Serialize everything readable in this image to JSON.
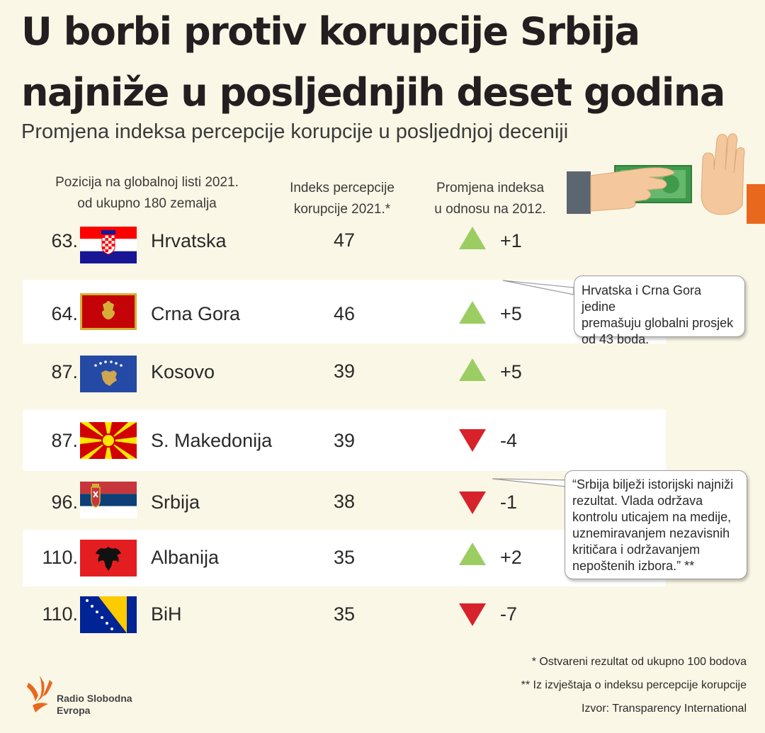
{
  "title_line1": "U borbi protiv korupcije Srbija",
  "title_line2": "najniže u posljednjih deset godina",
  "subtitle": "Promjena indeksa percepcije korupcije u posljednjoj deceniji",
  "headers": {
    "rank_line1": "Pozicija na globalnoj listi 2021.",
    "rank_line2": "od ukupno 180 zemalja",
    "score_line1": "Indeks percepcije",
    "score_line2": "korupcije 2021.*",
    "change_line1": "Promjena indeksa",
    "change_line2": "u odnosu na 2012."
  },
  "chart_data": {
    "type": "table",
    "columns": [
      "Pozicija na globalnoj listi 2021. od ukupno 180 zemalja",
      "Indeks percepcije korupcije 2021.*",
      "Promjena indeksa u odnosu na 2012."
    ],
    "rows": [
      {
        "rank": "63.",
        "country": "Hrvatska",
        "score": "47",
        "change": "+1",
        "direction": "up",
        "flag": "croatia"
      },
      {
        "rank": "64.",
        "country": "Crna Gora",
        "score": "46",
        "change": "+5",
        "direction": "up",
        "flag": "montenegro"
      },
      {
        "rank": "87.",
        "country": "Kosovo",
        "score": "39",
        "change": "+5",
        "direction": "up",
        "flag": "kosovo"
      },
      {
        "rank": "87.",
        "country": "S. Makedonija",
        "score": "39",
        "change": "-4",
        "direction": "down",
        "flag": "north-macedonia"
      },
      {
        "rank": "96.",
        "country": "Srbija",
        "score": "38",
        "change": "-1",
        "direction": "down",
        "flag": "serbia"
      },
      {
        "rank": "110.",
        "country": "Albanija",
        "score": "35",
        "change": "+2",
        "direction": "up",
        "flag": "albania"
      },
      {
        "rank": "110.",
        "country": "BiH",
        "score": "35",
        "change": "-7",
        "direction": "down",
        "flag": "bosnia"
      }
    ]
  },
  "callout1": {
    "line1": "Hrvatska i Crna Gora jedine",
    "line2": "premašuju globalni prosjek",
    "line3": "od 43 boda."
  },
  "callout2": {
    "line1": "“Srbija bilježi istorijski najniži",
    "line2": "rezultat. Vlada održava",
    "line3": "kontrolu uticajem na medije,",
    "line4": "uznemiravanjem nezavisnih",
    "line5": "kritičara i održavanjem",
    "line6": "nepoštenih izbora.” **"
  },
  "footnotes": {
    "note1": "* Ostvareni rezultat od ukupno 100 bodova",
    "note2": "** Iz izvještaja o indeksu percepcije korupcije",
    "source": "Izvor: Transparency International"
  },
  "logo": {
    "line1": "Radio Slobodna",
    "line2": "Evropa"
  },
  "colors": {
    "background": "#fbf7e6",
    "up_arrow": "#9ccd63",
    "down_arrow": "#d7222b",
    "band": "#ffffff"
  }
}
